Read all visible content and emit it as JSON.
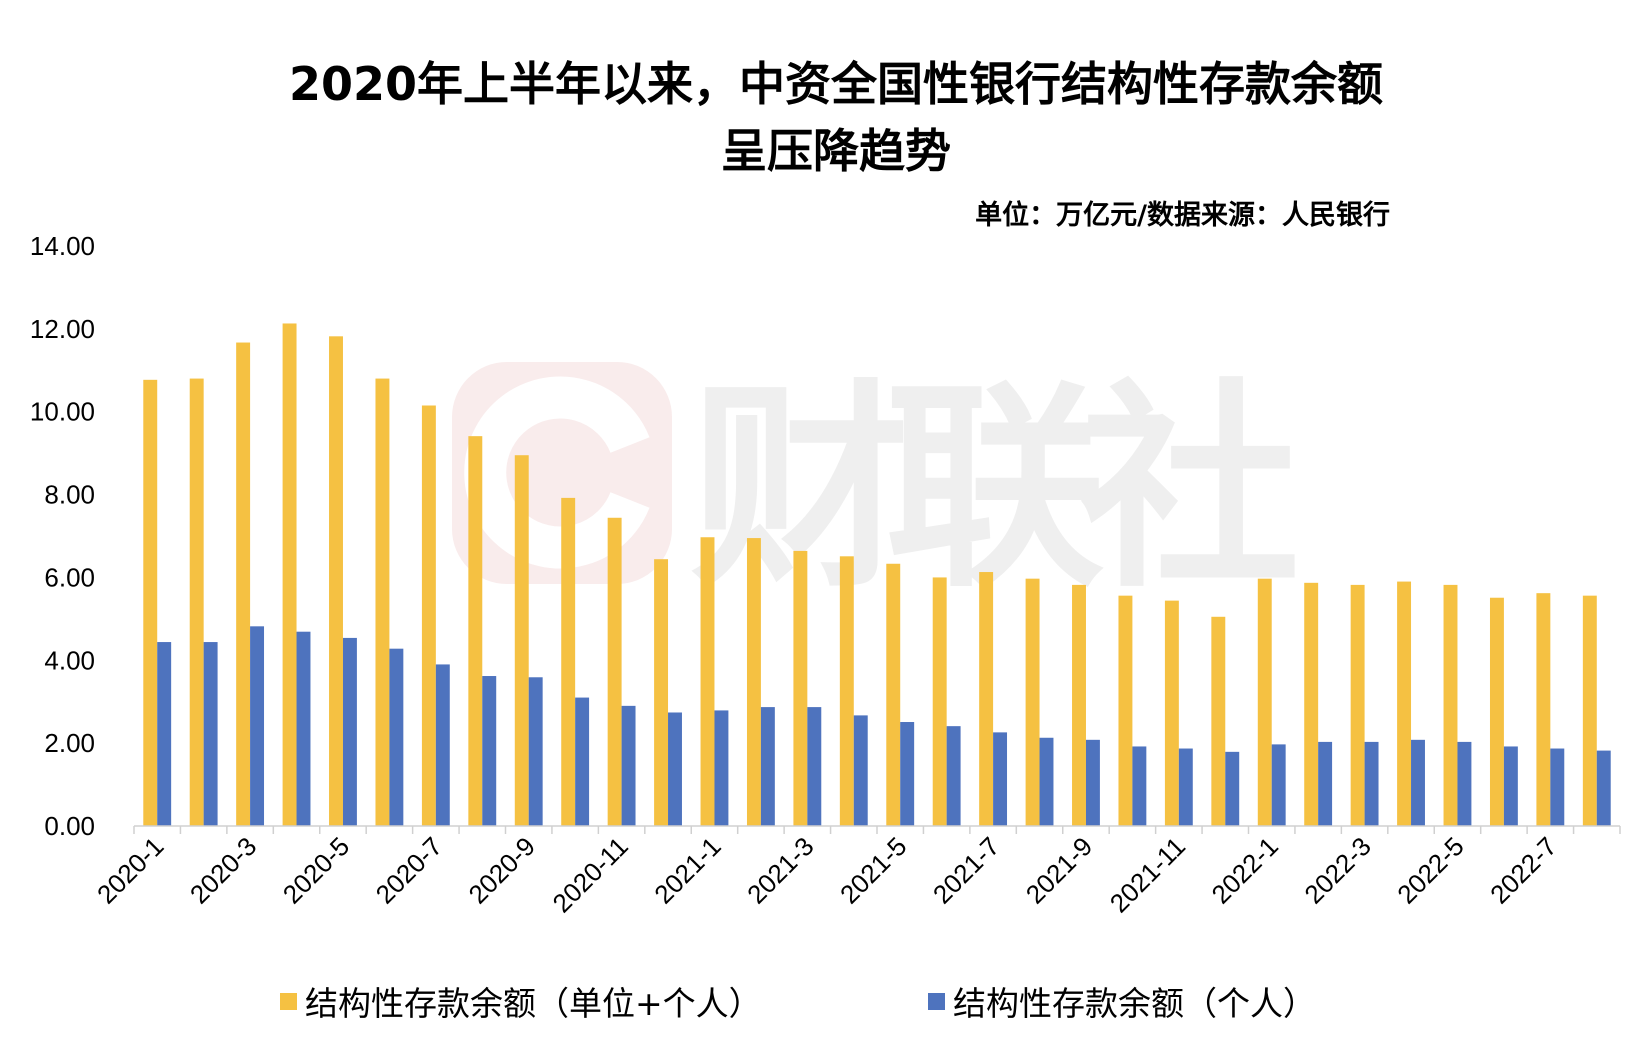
{
  "chart_data": {
    "type": "bar",
    "title_line1": "2020年上半年以来，中资全国性银行结构性存款余额",
    "title_line2": "呈压降趋势",
    "unit_note": "单位：万亿元/数据来源：人民银行",
    "watermark": "财联社",
    "ylim": [
      0,
      14
    ],
    "yticks": [
      "0.00",
      "2.00",
      "4.00",
      "6.00",
      "8.00",
      "10.00",
      "12.00",
      "14.00"
    ],
    "grid": false,
    "legend_position": "bottom",
    "categories": [
      "2020-1",
      "2020-2",
      "2020-3",
      "2020-4",
      "2020-5",
      "2020-6",
      "2020-7",
      "2020-8",
      "2020-9",
      "2020-10",
      "2020-11",
      "2020-12",
      "2021-1",
      "2021-2",
      "2021-3",
      "2021-4",
      "2021-5",
      "2021-6",
      "2021-7",
      "2021-8",
      "2021-9",
      "2021-10",
      "2021-11",
      "2021-12",
      "2022-1",
      "2022-2",
      "2022-3",
      "2022-4",
      "2022-5",
      "2022-6",
      "2022-7",
      "2022-8"
    ],
    "xtick_labels": [
      "2020-1",
      "2020-3",
      "2020-5",
      "2020-7",
      "2020-9",
      "2020-11",
      "2021-1",
      "2021-3",
      "2021-5",
      "2021-7",
      "2021-9",
      "2021-11",
      "2022-1",
      "2022-3",
      "2022-5",
      "2022-7"
    ],
    "series": [
      {
        "name": "结构性存款余额（单位+个人）",
        "color": "#F5C142",
        "values": [
          10.77,
          10.8,
          11.67,
          12.13,
          11.82,
          10.8,
          10.15,
          9.41,
          8.95,
          7.92,
          7.44,
          6.44,
          6.97,
          6.95,
          6.64,
          6.51,
          6.33,
          6.0,
          6.13,
          5.97,
          5.82,
          5.56,
          5.44,
          5.05,
          5.97,
          5.87,
          5.82,
          5.9,
          5.82,
          5.51,
          5.62,
          5.56
        ]
      },
      {
        "name": "结构性存款余额（个人）",
        "color": "#4E73BE",
        "values": [
          4.44,
          4.44,
          4.82,
          4.69,
          4.54,
          4.28,
          3.9,
          3.62,
          3.59,
          3.1,
          2.9,
          2.74,
          2.79,
          2.87,
          2.87,
          2.67,
          2.51,
          2.41,
          2.26,
          2.13,
          2.08,
          1.92,
          1.87,
          1.79,
          1.97,
          2.03,
          2.03,
          2.08,
          2.03,
          1.92,
          1.87,
          1.82
        ]
      }
    ]
  }
}
